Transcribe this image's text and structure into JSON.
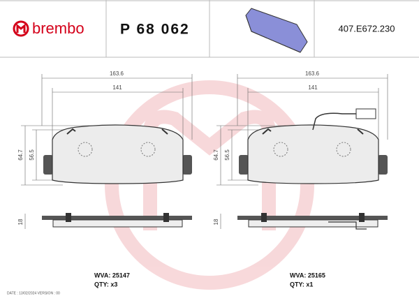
{
  "header": {
    "brand": "brembo",
    "part_number": "P 68 062",
    "reference": "407.E672.230"
  },
  "drawings": [
    {
      "width_overall": "163.6",
      "width_inner": "141",
      "height_overall": "64.7",
      "height_inner": "56.5",
      "thickness": "18",
      "wva": "WVA: 25147",
      "qty": "QTY: x3"
    },
    {
      "width_overall": "163.6",
      "width_inner": "141",
      "height_overall": "64.7",
      "height_inner": "56.5",
      "thickness": "18",
      "wva": "WVA: 25165",
      "qty": "QTY: x1"
    }
  ],
  "footer": "DATE : 13/02/2024 VERSION : 00"
}
